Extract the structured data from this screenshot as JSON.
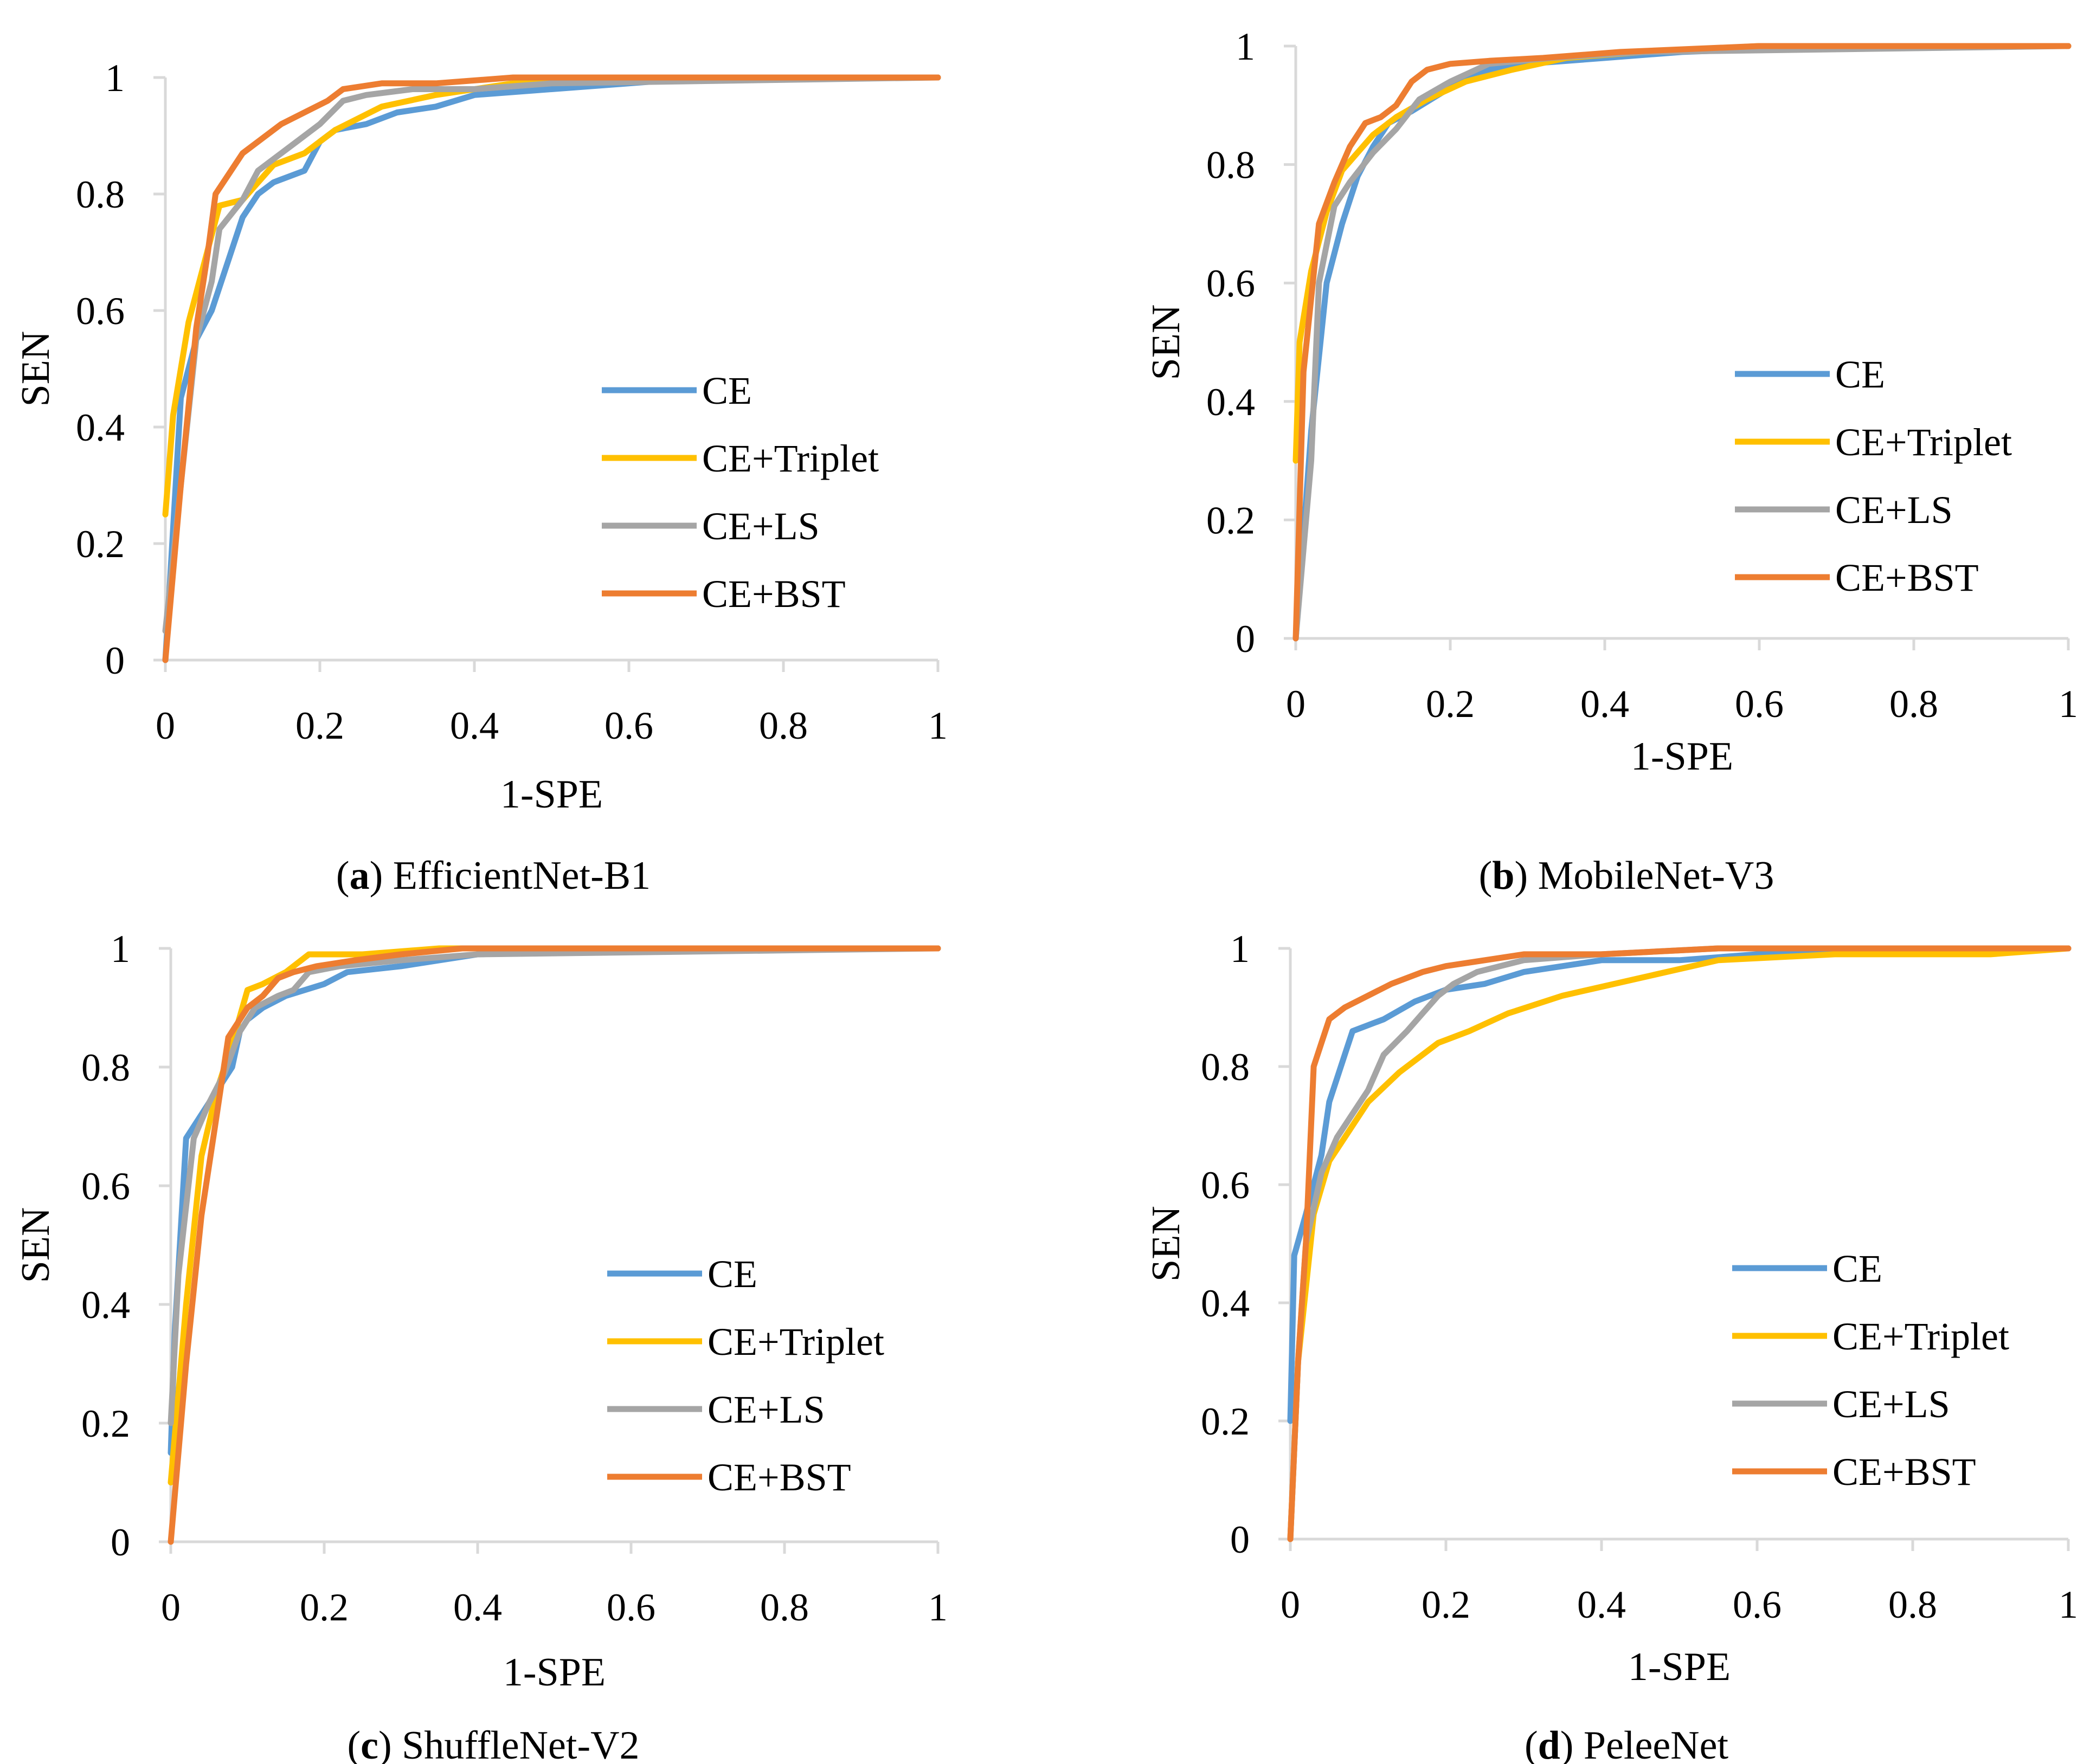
{
  "colors": {
    "CE": "#5B9BD5",
    "CE+Triplet": "#FFC000",
    "CE+LS": "#A5A5A5",
    "CE+BST": "#ED7D31",
    "axis": "#D9D9D9"
  },
  "chart_data": [
    {
      "type": "line",
      "caption_letter": "a",
      "caption_name": "EfficientNet-B1",
      "xlabel": "1-SPE",
      "ylabel": "SEN",
      "xlim": [
        0,
        1
      ],
      "ylim": [
        0,
        1
      ],
      "xticks": [
        "0",
        "0.2",
        "0.4",
        "0.6",
        "0.8",
        "1"
      ],
      "yticks": [
        "0",
        "0.2",
        "0.4",
        "0.6",
        "0.8",
        "1"
      ],
      "grid": false,
      "legend_position": "right-middle",
      "series": [
        {
          "name": "CE",
          "x": [
            0,
            0.02,
            0.04,
            0.06,
            0.08,
            0.1,
            0.12,
            0.14,
            0.18,
            0.2,
            0.22,
            0.26,
            0.3,
            0.35,
            0.4,
            0.5,
            0.6,
            0.7,
            1
          ],
          "y": [
            0,
            0.45,
            0.55,
            0.6,
            0.68,
            0.76,
            0.8,
            0.82,
            0.84,
            0.89,
            0.91,
            0.92,
            0.94,
            0.95,
            0.97,
            0.98,
            0.99,
            1.0,
            1.0
          ]
        },
        {
          "name": "CE+Triplet",
          "x": [
            0,
            0.01,
            0.03,
            0.05,
            0.07,
            0.1,
            0.14,
            0.18,
            0.22,
            0.28,
            0.35,
            0.45,
            0.6,
            1
          ],
          "y": [
            0.25,
            0.42,
            0.58,
            0.68,
            0.78,
            0.79,
            0.85,
            0.87,
            0.91,
            0.95,
            0.97,
            0.99,
            1.0,
            1.0
          ]
        },
        {
          "name": "CE+LS",
          "x": [
            0,
            0.02,
            0.04,
            0.06,
            0.07,
            0.1,
            0.12,
            0.14,
            0.17,
            0.2,
            0.23,
            0.26,
            0.32,
            0.4,
            0.5,
            1
          ],
          "y": [
            0.05,
            0.3,
            0.55,
            0.65,
            0.74,
            0.79,
            0.84,
            0.86,
            0.89,
            0.92,
            0.96,
            0.97,
            0.98,
            0.98,
            0.99,
            1.0
          ]
        },
        {
          "name": "CE+BST",
          "x": [
            0,
            0.02,
            0.04,
            0.055,
            0.065,
            0.08,
            0.1,
            0.13,
            0.15,
            0.18,
            0.21,
            0.23,
            0.28,
            0.35,
            0.45,
            0.6,
            1
          ],
          "y": [
            0,
            0.3,
            0.57,
            0.7,
            0.8,
            0.83,
            0.87,
            0.9,
            0.92,
            0.94,
            0.96,
            0.98,
            0.99,
            0.99,
            1.0,
            1.0,
            1.0
          ]
        }
      ],
      "legend": [
        "CE",
        "CE+Triplet",
        "CE+LS",
        "CE+BST"
      ]
    },
    {
      "type": "line",
      "caption_letter": "b",
      "caption_name": "MobileNet-V3",
      "xlabel": "1-SPE",
      "ylabel": "SEN",
      "xlim": [
        0,
        1
      ],
      "ylim": [
        0,
        1
      ],
      "xticks": [
        "0",
        "0.2",
        "0.4",
        "0.6",
        "0.8",
        "1"
      ],
      "yticks": [
        "0",
        "0.2",
        "0.4",
        "0.6",
        "0.8",
        "1"
      ],
      "grid": false,
      "legend_position": "right-middle",
      "series": [
        {
          "name": "CE",
          "x": [
            0,
            0.02,
            0.04,
            0.06,
            0.08,
            0.1,
            0.12,
            0.15,
            0.2,
            0.25,
            0.3,
            0.4,
            0.5,
            0.7,
            1
          ],
          "y": [
            0,
            0.35,
            0.6,
            0.7,
            0.78,
            0.83,
            0.87,
            0.89,
            0.93,
            0.96,
            0.97,
            0.98,
            0.99,
            1.0,
            1.0
          ]
        },
        {
          "name": "CE+Triplet",
          "x": [
            0,
            0.005,
            0.02,
            0.04,
            0.06,
            0.08,
            0.1,
            0.13,
            0.17,
            0.22,
            0.28,
            0.35,
            0.45,
            0.6,
            1
          ],
          "y": [
            0.3,
            0.5,
            0.62,
            0.72,
            0.79,
            0.82,
            0.85,
            0.88,
            0.91,
            0.94,
            0.96,
            0.98,
            0.99,
            1.0,
            1.0
          ]
        },
        {
          "name": "CE+LS",
          "x": [
            0,
            0.02,
            0.03,
            0.05,
            0.07,
            0.1,
            0.13,
            0.16,
            0.2,
            0.25,
            0.33,
            0.45,
            1
          ],
          "y": [
            0,
            0.3,
            0.6,
            0.73,
            0.77,
            0.82,
            0.86,
            0.91,
            0.94,
            0.97,
            0.98,
            0.99,
            1.0
          ]
        },
        {
          "name": "CE+BST",
          "x": [
            0,
            0.01,
            0.03,
            0.05,
            0.07,
            0.09,
            0.11,
            0.13,
            0.15,
            0.17,
            0.2,
            0.25,
            0.32,
            0.42,
            0.6,
            1
          ],
          "y": [
            0,
            0.45,
            0.7,
            0.77,
            0.83,
            0.87,
            0.88,
            0.9,
            0.94,
            0.96,
            0.97,
            0.975,
            0.98,
            0.99,
            1.0,
            1.0
          ]
        }
      ],
      "legend": [
        "CE",
        "CE+Triplet",
        "CE+LS",
        "CE+BST"
      ]
    },
    {
      "type": "line",
      "caption_letter": "c",
      "caption_name": "ShuffleNet-V2",
      "xlabel": "1-SPE",
      "ylabel": "SEN",
      "xlim": [
        0,
        1
      ],
      "ylim": [
        0,
        1
      ],
      "xticks": [
        "0",
        "0.2",
        "0.4",
        "0.6",
        "0.8",
        "1"
      ],
      "yticks": [
        "0",
        "0.2",
        "0.4",
        "0.6",
        "0.8",
        "1"
      ],
      "grid": false,
      "legend_position": "right-middle",
      "series": [
        {
          "name": "CE",
          "x": [
            0,
            0.005,
            0.02,
            0.04,
            0.06,
            0.08,
            0.09,
            0.1,
            0.12,
            0.15,
            0.2,
            0.23,
            0.3,
            0.4,
            0.6,
            1
          ],
          "y": [
            0.15,
            0.35,
            0.68,
            0.72,
            0.76,
            0.8,
            0.86,
            0.88,
            0.9,
            0.92,
            0.94,
            0.96,
            0.97,
            0.99,
            1.0,
            1.0
          ]
        },
        {
          "name": "CE+Triplet",
          "x": [
            0,
            0.02,
            0.04,
            0.06,
            0.08,
            0.1,
            0.12,
            0.15,
            0.18,
            0.25,
            0.35,
            1
          ],
          "y": [
            0.1,
            0.4,
            0.65,
            0.76,
            0.84,
            0.93,
            0.94,
            0.96,
            0.99,
            0.99,
            1.0,
            1.0
          ]
        },
        {
          "name": "CE+LS",
          "x": [
            0,
            0.01,
            0.03,
            0.05,
            0.07,
            0.09,
            0.11,
            0.14,
            0.16,
            0.18,
            0.22,
            0.3,
            0.4,
            1
          ],
          "y": [
            0.2,
            0.45,
            0.68,
            0.74,
            0.79,
            0.86,
            0.9,
            0.92,
            0.93,
            0.96,
            0.97,
            0.98,
            0.99,
            1.0
          ]
        },
        {
          "name": "CE+BST",
          "x": [
            0,
            0.02,
            0.04,
            0.06,
            0.075,
            0.09,
            0.1,
            0.12,
            0.14,
            0.16,
            0.19,
            0.24,
            0.3,
            0.38,
            0.5,
            1
          ],
          "y": [
            0,
            0.3,
            0.55,
            0.72,
            0.85,
            0.88,
            0.9,
            0.92,
            0.95,
            0.96,
            0.97,
            0.98,
            0.99,
            1.0,
            1.0,
            1.0
          ]
        }
      ],
      "legend": [
        "CE",
        "CE+Triplet",
        "CE+LS",
        "CE+BST"
      ]
    },
    {
      "type": "line",
      "caption_letter": "d",
      "caption_name": "PeleeNet",
      "xlabel": "1-SPE",
      "ylabel": "SEN",
      "xlim": [
        0,
        1
      ],
      "ylim": [
        0,
        1
      ],
      "xticks": [
        "0",
        "0.2",
        "0.4",
        "0.6",
        "0.8",
        "1"
      ],
      "yticks": [
        "0",
        "0.2",
        "0.4",
        "0.6",
        "0.8",
        "1"
      ],
      "grid": false,
      "legend_position": "right-middle",
      "series": [
        {
          "name": "CE",
          "x": [
            0,
            0.005,
            0.02,
            0.04,
            0.05,
            0.07,
            0.08,
            0.12,
            0.16,
            0.2,
            0.25,
            0.3,
            0.4,
            0.5,
            0.6,
            1
          ],
          "y": [
            0.2,
            0.48,
            0.55,
            0.65,
            0.74,
            0.82,
            0.86,
            0.88,
            0.91,
            0.93,
            0.94,
            0.96,
            0.98,
            0.98,
            0.99,
            1.0
          ]
        },
        {
          "name": "CE+Triplet",
          "x": [
            0,
            0.01,
            0.03,
            0.05,
            0.08,
            0.1,
            0.14,
            0.19,
            0.23,
            0.28,
            0.35,
            0.45,
            0.55,
            0.7,
            0.9,
            1
          ],
          "y": [
            0,
            0.3,
            0.55,
            0.64,
            0.7,
            0.74,
            0.79,
            0.84,
            0.86,
            0.89,
            0.92,
            0.95,
            0.98,
            0.99,
            0.99,
            1.0
          ]
        },
        {
          "name": "CE+LS",
          "x": [
            0,
            0.01,
            0.02,
            0.04,
            0.06,
            0.08,
            0.1,
            0.12,
            0.15,
            0.17,
            0.19,
            0.21,
            0.24,
            0.3,
            0.4,
            0.55,
            1
          ],
          "y": [
            0,
            0.3,
            0.5,
            0.62,
            0.68,
            0.72,
            0.76,
            0.82,
            0.86,
            0.89,
            0.92,
            0.94,
            0.96,
            0.98,
            0.99,
            1.0,
            1.0
          ]
        },
        {
          "name": "CE+BST",
          "x": [
            0,
            0.01,
            0.02,
            0.03,
            0.04,
            0.05,
            0.07,
            0.1,
            0.13,
            0.17,
            0.2,
            0.25,
            0.3,
            0.4,
            0.55,
            1
          ],
          "y": [
            0,
            0.3,
            0.5,
            0.8,
            0.84,
            0.88,
            0.9,
            0.92,
            0.94,
            0.96,
            0.97,
            0.98,
            0.99,
            0.99,
            1.0,
            1.0
          ]
        }
      ],
      "legend": [
        "CE",
        "CE+Triplet",
        "CE+LS",
        "CE+BST"
      ]
    }
  ]
}
